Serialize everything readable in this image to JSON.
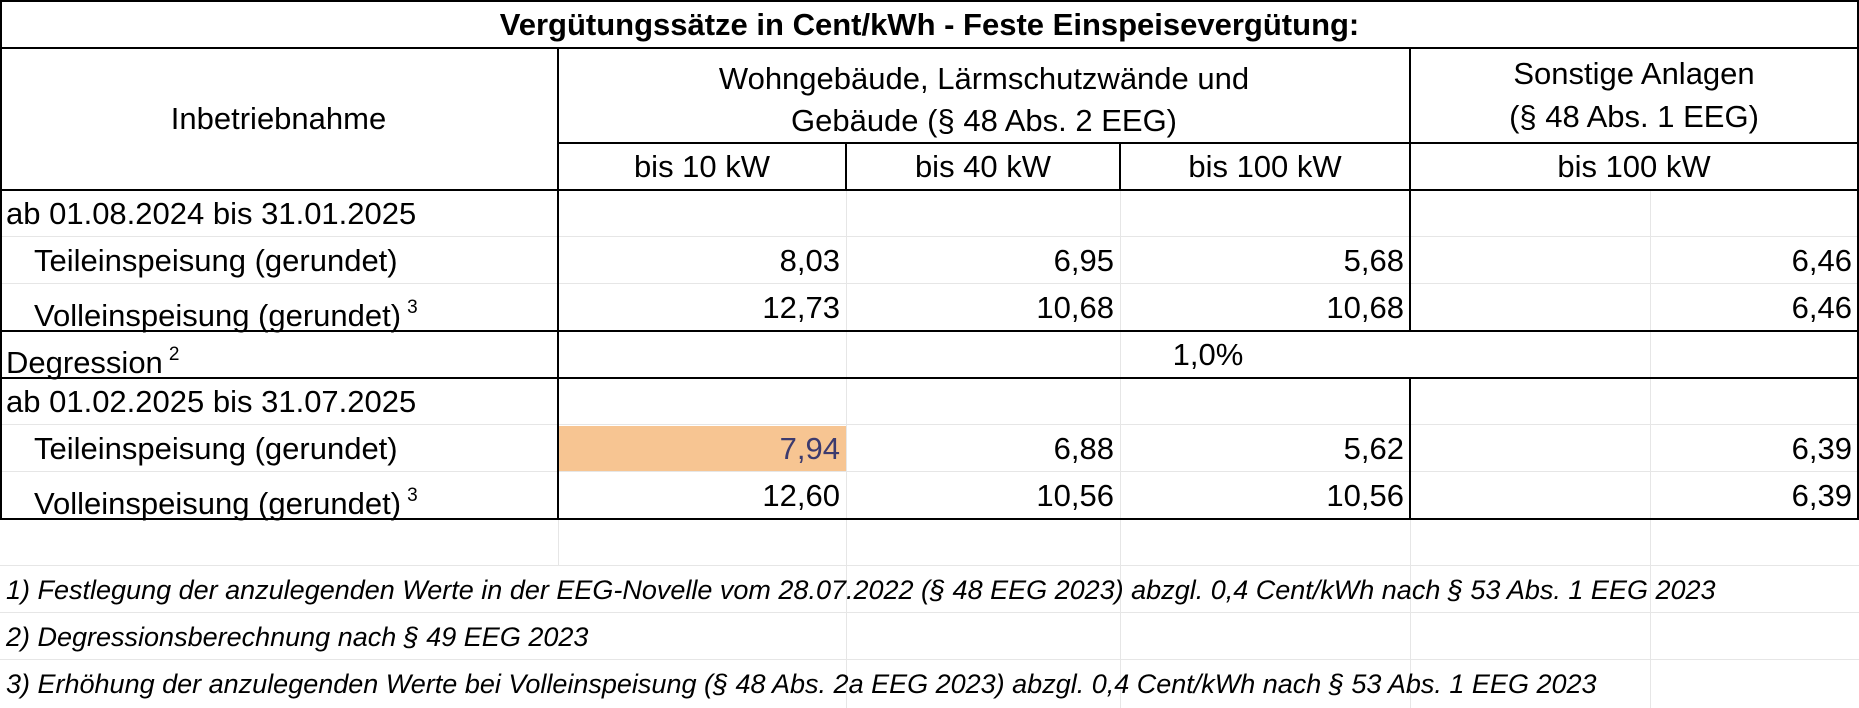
{
  "table": {
    "title": "Vergütungssätze in Cent/kWh - Feste Einspeisevergütung:",
    "col_header_label": "Inbetriebnahme",
    "group1_line1": "Wohngebäude, Lärmschutzwände und",
    "group1_line2": "Gebäude (§ 48 Abs. 2 EEG)",
    "group2_line1": "Sonstige Anlagen",
    "group2_line2": "(§ 48 Abs. 1 EEG)",
    "sub_headers": [
      "bis 10 kW",
      "bis 40 kW",
      "bis 100 kW",
      "bis 100 kW"
    ],
    "period1": {
      "label": "ab 01.08.2024 bis 31.01.2025",
      "teil_label": "Teileinspeisung (gerundet)",
      "teil_values": [
        "8,03",
        "6,95",
        "5,68",
        "6,46"
      ],
      "voll_label": "Volleinspeisung (gerundet)",
      "voll_sup": "3",
      "voll_values": [
        "12,73",
        "10,68",
        "10,68",
        "6,46"
      ]
    },
    "degression": {
      "label": "Degression",
      "sup": "2",
      "value": "1,0%"
    },
    "period2": {
      "label": "ab 01.02.2025 bis 31.07.2025",
      "teil_label": "Teileinspeisung (gerundet)",
      "teil_values": [
        "7,94",
        "6,88",
        "5,62",
        "6,39"
      ],
      "voll_label": "Volleinspeisung (gerundet)",
      "voll_sup": "3",
      "voll_values": [
        "12,60",
        "10,56",
        "10,56",
        "6,39"
      ]
    },
    "highlight_color": "#f7c592"
  },
  "footnotes": [
    "1) Festlegung der anzulegenden Werte in der EEG-Novelle vom 28.07.2022 (§ 48 EEG 2023) abzgl. 0,4 Cent/kWh nach § 53 Abs. 1 EEG 2023",
    "2) Degressionsberechnung nach § 49 EEG 2023",
    "3) Erhöhung der anzulegenden Werte bei Volleinspeisung (§ 48 Abs. 2a EEG 2023) abzgl. 0,4 Cent/kWh nach § 53 Abs. 1 EEG 2023"
  ]
}
